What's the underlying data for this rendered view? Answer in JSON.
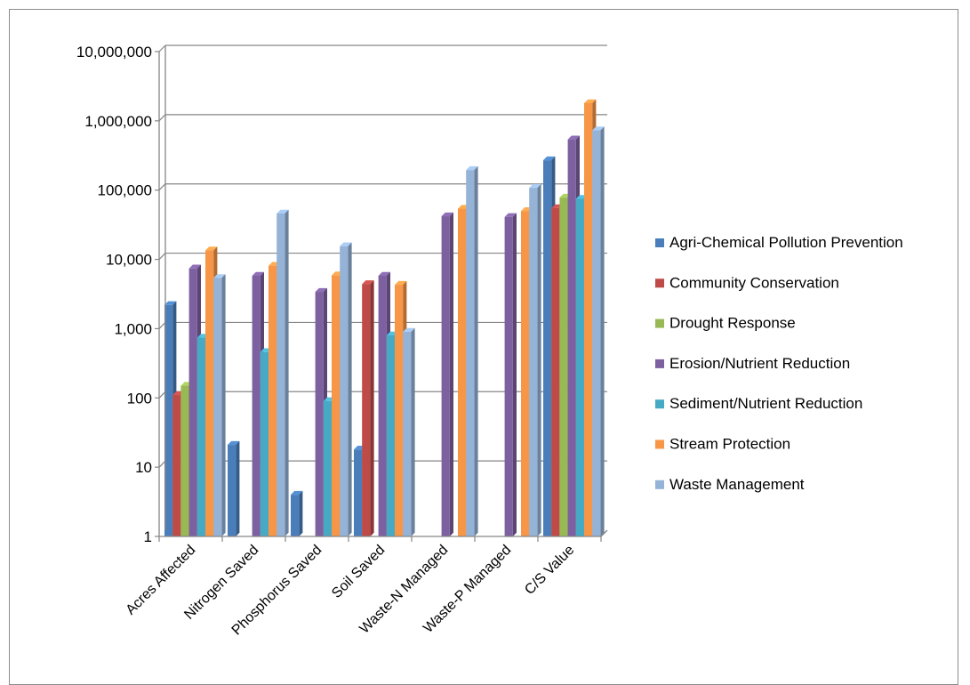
{
  "chart_data": {
    "type": "bar",
    "title": "",
    "xlabel": "",
    "ylabel": "",
    "yscale": "log",
    "ylim": [
      1,
      10000000
    ],
    "ytick_labels": [
      "1",
      "10",
      "100",
      "1,000",
      "10,000",
      "100,000",
      "1,000,000",
      "10,000,000"
    ],
    "grid": true,
    "legend_position": "right",
    "categories": [
      "Acres Affected",
      "Nitrogen Saved",
      "Phosphorus Saved",
      "Soil Saved",
      "Waste-N Managed",
      "Waste-P Managed",
      "C/S Value"
    ],
    "series": [
      {
        "name": "Agri-Chemical Pollution Prevention",
        "color": "#4a7ebb",
        "values": [
          2200,
          21,
          4,
          18,
          null,
          null,
          270000
        ]
      },
      {
        "name": "Community Conservation",
        "color": "#be4b48",
        "values": [
          110,
          null,
          null,
          4400,
          null,
          null,
          55000
        ]
      },
      {
        "name": "Drought Response",
        "color": "#98b954",
        "values": [
          150,
          null,
          null,
          null,
          null,
          null,
          78000
        ]
      },
      {
        "name": "Erosion/Nutrient Reduction",
        "color": "#7d60a0",
        "values": [
          7400,
          5800,
          3400,
          5800,
          42000,
          41000,
          540000
        ]
      },
      {
        "name": "Sediment/Nutrient Reduction",
        "color": "#46aac5",
        "values": [
          740,
          460,
          90,
          800,
          null,
          null,
          75000
        ]
      },
      {
        "name": "Stream Protection",
        "color": "#f79646",
        "values": [
          13500,
          8100,
          5900,
          4300,
          54000,
          50000,
          1800000
        ]
      },
      {
        "name": "Waste Management",
        "color": "#95b3d7",
        "values": [
          5400,
          46000,
          15500,
          900,
          195000,
          108000,
          730000
        ]
      }
    ]
  }
}
